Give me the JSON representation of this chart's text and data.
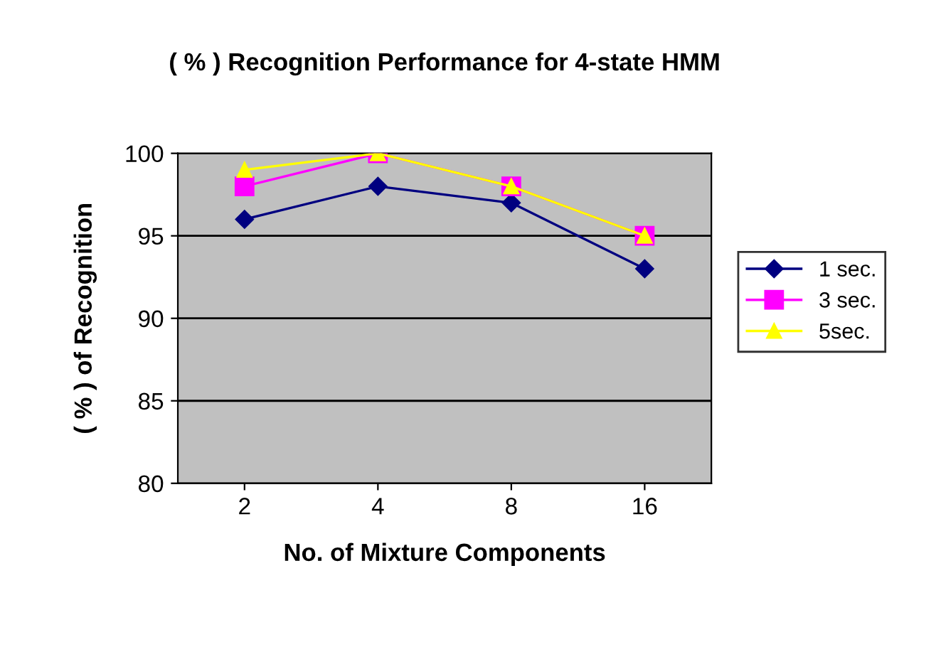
{
  "chart_data": {
    "type": "line",
    "title": "( % ) Recognition Performance for 4-state HMM",
    "xlabel": "No. of Mixture Components",
    "ylabel": "( % ) of Recognition",
    "categories": [
      "2",
      "4",
      "8",
      "16"
    ],
    "series": [
      {
        "name": "1 sec.",
        "color": "#000080",
        "marker": "diamond",
        "values": [
          96,
          98,
          97,
          93
        ]
      },
      {
        "name": "3 sec.",
        "color": "#ff00ff",
        "marker": "square",
        "values": [
          98,
          100,
          98,
          95
        ]
      },
      {
        "name": "5sec.",
        "color": "#ffff00",
        "marker": "triangle",
        "values": [
          99,
          100,
          98,
          95
        ]
      }
    ],
    "ylim": [
      80,
      100
    ],
    "yticks": [
      80,
      85,
      90,
      95,
      100
    ],
    "grid": "y",
    "legend": "right"
  }
}
